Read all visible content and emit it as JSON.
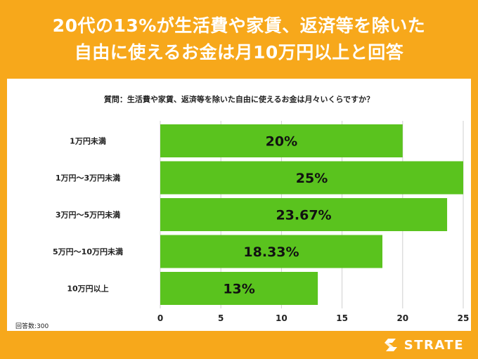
{
  "header": {
    "title_line1": "20代の13%が生活費や家賃、返済等を除いた",
    "title_line2": "自由に使えるお金は月10万円以上と回答"
  },
  "question": "質問：生活費や家賃、返済等を除いた自由に使えるお金は月々いくらですか？",
  "respondents": "回答数:300",
  "logo": {
    "text": "STRATE",
    "icon": "strate-s-logo-icon"
  },
  "colors": {
    "accent": "#f7a81b",
    "bar": "#5ac31e",
    "grid": "#cfcfcf"
  },
  "chart_data": {
    "type": "bar",
    "orientation": "horizontal",
    "categories": [
      "1万円未満",
      "1万円〜3万円未満",
      "3万円〜5万円未満",
      "5万円〜10万円未満",
      "10万円以上"
    ],
    "values": [
      20,
      25,
      23.67,
      18.33,
      13
    ],
    "value_labels": [
      "20%",
      "25%",
      "23.67%",
      "18.33%",
      "13%"
    ],
    "xlim": [
      0,
      25
    ],
    "xticks": [
      0,
      5,
      10,
      15,
      20,
      25
    ],
    "grid": true,
    "title": "",
    "xlabel": "",
    "ylabel": ""
  }
}
